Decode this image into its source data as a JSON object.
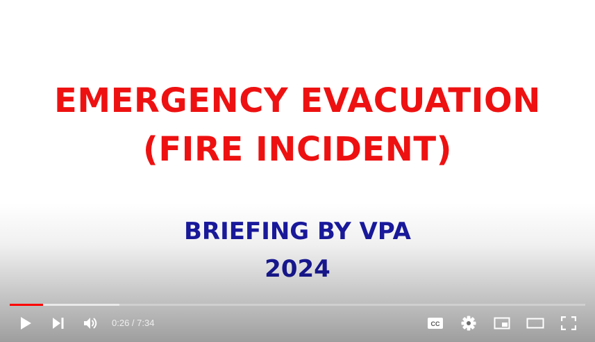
{
  "slide": {
    "title_line1": "EMERGENCY EVACUATION",
    "title_line2": "(FIRE INCIDENT)",
    "subtitle_line1": "BRIEFING BY VPA",
    "subtitle_line2": "2024",
    "title_color": "#ee1111",
    "subtitle_color": "#1a1aa0"
  },
  "player": {
    "current_time": "0:26",
    "separator": " / ",
    "duration": "7:34",
    "progress_played_fraction": 0.058,
    "progress_buffered_fraction": 0.19,
    "accent_color": "#ff0000",
    "controls": {
      "left": [
        "play-icon",
        "next-icon",
        "volume-icon"
      ],
      "right": [
        "closed-captions-icon",
        "settings-icon",
        "miniplayer-icon",
        "theater-mode-icon",
        "fullscreen-icon"
      ]
    }
  }
}
